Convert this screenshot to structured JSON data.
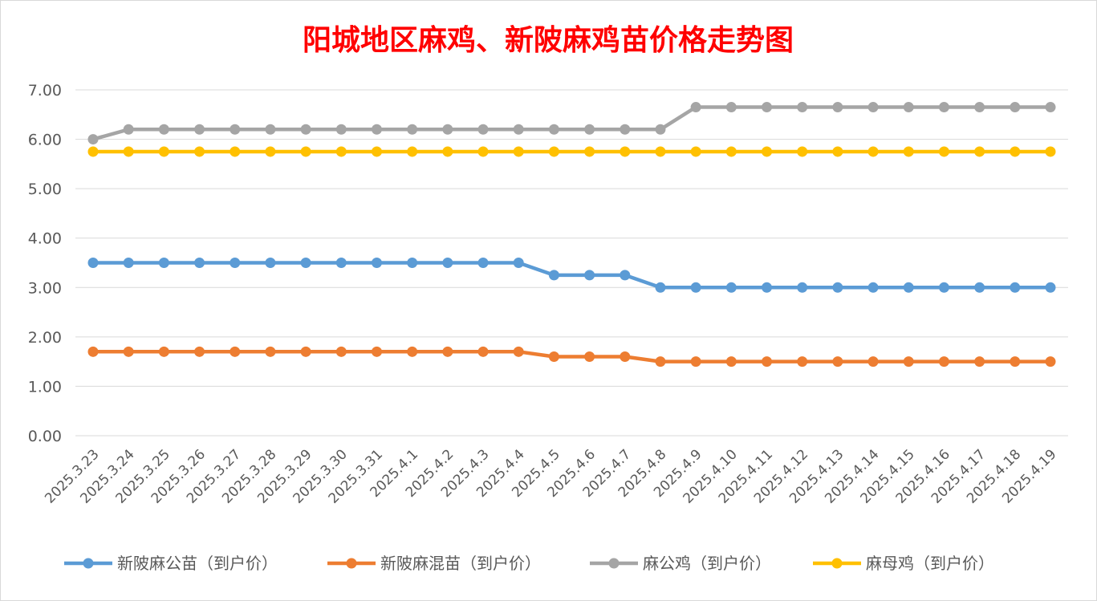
{
  "chart_data": {
    "type": "line",
    "title": "阳城地区麻鸡、新陂麻鸡苗价格走势图",
    "xlabel": "",
    "ylabel": "",
    "ylim": [
      0,
      7
    ],
    "y_ticks": [
      "0.00",
      "1.00",
      "2.00",
      "3.00",
      "4.00",
      "5.00",
      "6.00",
      "7.00"
    ],
    "grid": true,
    "legend_position": "bottom",
    "categories": [
      "2025.3.23",
      "2025.3.24",
      "2025.3.25",
      "2025.3.26",
      "2025.3.27",
      "2025.3.28",
      "2025.3.29",
      "2025.3.30",
      "2025.3.31",
      "2025.4.1",
      "2025.4.2",
      "2025.4.3",
      "2025.4.4",
      "2025.4.5",
      "2025.4.6",
      "2025.4.7",
      "2025.4.8",
      "2025.4.9",
      "2025.4.10",
      "2025.4.11",
      "2025.4.12",
      "2025.4.13",
      "2025.4.14",
      "2025.4.15",
      "2025.4.16",
      "2025.4.17",
      "2025.4.18",
      "2025.4.19"
    ],
    "series": [
      {
        "name": "新陂麻公苗（到户价）",
        "color": "#5b9bd5",
        "values": [
          3.5,
          3.5,
          3.5,
          3.5,
          3.5,
          3.5,
          3.5,
          3.5,
          3.5,
          3.5,
          3.5,
          3.5,
          3.5,
          3.25,
          3.25,
          3.25,
          3.0,
          3.0,
          3.0,
          3.0,
          3.0,
          3.0,
          3.0,
          3.0,
          3.0,
          3.0,
          3.0,
          3.0
        ]
      },
      {
        "name": "新陂麻混苗（到户价）",
        "color": "#ed7d31",
        "values": [
          1.7,
          1.7,
          1.7,
          1.7,
          1.7,
          1.7,
          1.7,
          1.7,
          1.7,
          1.7,
          1.7,
          1.7,
          1.7,
          1.6,
          1.6,
          1.6,
          1.5,
          1.5,
          1.5,
          1.5,
          1.5,
          1.5,
          1.5,
          1.5,
          1.5,
          1.5,
          1.5,
          1.5
        ]
      },
      {
        "name": "麻公鸡（到户价）",
        "color": "#a5a5a5",
        "values": [
          6.0,
          6.2,
          6.2,
          6.2,
          6.2,
          6.2,
          6.2,
          6.2,
          6.2,
          6.2,
          6.2,
          6.2,
          6.2,
          6.2,
          6.2,
          6.2,
          6.2,
          6.65,
          6.65,
          6.65,
          6.65,
          6.65,
          6.65,
          6.65,
          6.65,
          6.65,
          6.65,
          6.65
        ]
      },
      {
        "name": "麻母鸡（到户价）",
        "color": "#ffc000",
        "values": [
          5.75,
          5.75,
          5.75,
          5.75,
          5.75,
          5.75,
          5.75,
          5.75,
          5.75,
          5.75,
          5.75,
          5.75,
          5.75,
          5.75,
          5.75,
          5.75,
          5.75,
          5.75,
          5.75,
          5.75,
          5.75,
          5.75,
          5.75,
          5.75,
          5.75,
          5.75,
          5.75,
          5.75
        ]
      }
    ]
  }
}
